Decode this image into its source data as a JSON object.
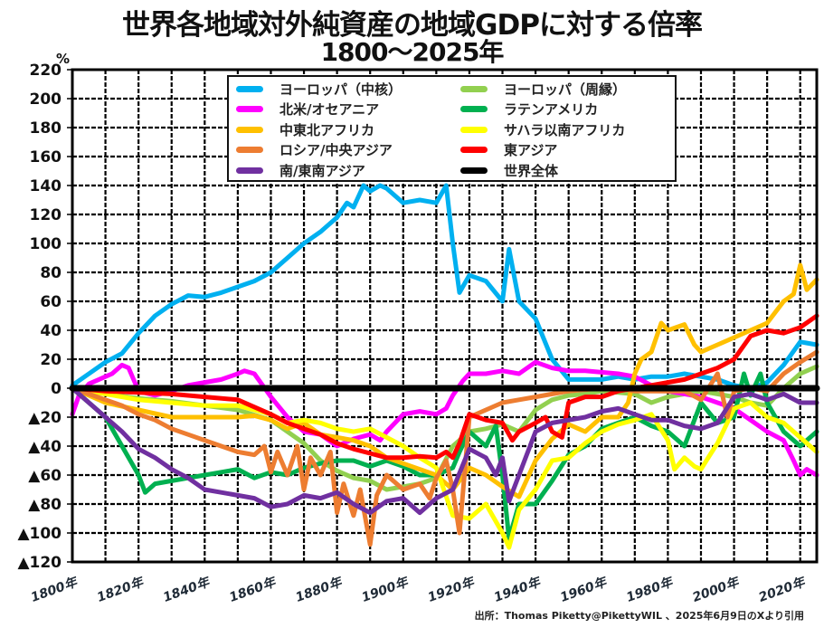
{
  "chart_data": {
    "type": "line",
    "title": "世界各地域対外純資産の地域GDPに対する倍率",
    "subtitle": "1800～2025年",
    "ylabel": "%",
    "xlabel": "",
    "ylim": [
      -120,
      220
    ],
    "xlim": [
      1800,
      2025
    ],
    "grid": true,
    "legend_position": "top-center",
    "y_ticks": [
      220,
      200,
      180,
      160,
      140,
      120,
      100,
      80,
      60,
      40,
      20,
      0,
      -20,
      -40,
      -60,
      -80,
      -100,
      -120
    ],
    "y_tick_labels": [
      "220",
      "200",
      "180",
      "160",
      "140",
      "120",
      "100",
      "80",
      "60",
      "40",
      "20",
      "0",
      "▲20",
      "▲40",
      "▲60",
      "▲80",
      "▲100",
      "▲120"
    ],
    "x_ticks": [
      1800,
      1820,
      1840,
      1860,
      1880,
      1900,
      1920,
      1940,
      1960,
      1980,
      2000,
      2020
    ],
    "x_tick_labels": [
      "1800年",
      "1820年",
      "1840年",
      "1860年",
      "1880年",
      "1900年",
      "1920年",
      "1940年",
      "1960年",
      "1980年",
      "2000年",
      "2020年"
    ],
    "source": "出所：Thomas Piketty@PikettyWIL 、2025年6月9日のXより引用",
    "series": [
      {
        "name": "ヨーロッパ（中核）",
        "color": "#00B0F0",
        "x": [
          1800,
          1805,
          1810,
          1815,
          1820,
          1825,
          1830,
          1835,
          1840,
          1845,
          1850,
          1855,
          1860,
          1865,
          1870,
          1875,
          1880,
          1883,
          1885,
          1888,
          1890,
          1893,
          1895,
          1900,
          1905,
          1910,
          1913,
          1915,
          1917,
          1920,
          1925,
          1930,
          1932,
          1935,
          1940,
          1945,
          1950,
          1955,
          1960,
          1965,
          1970,
          1975,
          1980,
          1985,
          1990,
          1995,
          2000,
          2005,
          2010,
          2015,
          2020,
          2025
        ],
        "y": [
          2,
          10,
          18,
          24,
          38,
          50,
          58,
          64,
          63,
          66,
          70,
          74,
          80,
          90,
          100,
          108,
          118,
          128,
          125,
          140,
          136,
          140,
          138,
          128,
          130,
          128,
          140,
          100,
          66,
          78,
          74,
          60,
          96,
          60,
          48,
          20,
          6,
          6,
          6,
          8,
          6,
          8,
          8,
          10,
          8,
          6,
          2,
          0,
          4,
          16,
          32,
          30
        ]
      },
      {
        "name": "ヨーロッパ（周縁）",
        "color": "#92D050",
        "x": [
          1800,
          1810,
          1820,
          1830,
          1840,
          1850,
          1860,
          1870,
          1875,
          1880,
          1885,
          1890,
          1895,
          1900,
          1905,
          1910,
          1915,
          1920,
          1925,
          1930,
          1935,
          1940,
          1945,
          1950,
          1955,
          1960,
          1965,
          1970,
          1975,
          1980,
          1985,
          1990,
          1995,
          2000,
          2005,
          2010,
          2015,
          2020,
          2025
        ],
        "y": [
          0,
          -4,
          -7,
          -9,
          -12,
          -15,
          -22,
          -38,
          -50,
          -57,
          -62,
          -64,
          -70,
          -68,
          -66,
          -62,
          -40,
          -30,
          -28,
          -25,
          -30,
          -15,
          -8,
          -5,
          -4,
          -2,
          -3,
          -4,
          -10,
          -6,
          -4,
          -2,
          -4,
          -6,
          -10,
          -12,
          0,
          10,
          15
        ]
      },
      {
        "name": "北米/オセアニア",
        "color": "#FF00FF",
        "x": [
          1800,
          1802,
          1805,
          1808,
          1810,
          1812,
          1815,
          1817,
          1820,
          1825,
          1830,
          1835,
          1840,
          1845,
          1850,
          1852,
          1855,
          1860,
          1865,
          1870,
          1875,
          1880,
          1885,
          1890,
          1893,
          1895,
          1900,
          1905,
          1910,
          1913,
          1915,
          1918,
          1920,
          1925,
          1930,
          1935,
          1940,
          1945,
          1950,
          1955,
          1960,
          1965,
          1970,
          1975,
          1980,
          1985,
          1990,
          1995,
          2000,
          2005,
          2010,
          2015,
          2018,
          2020,
          2022,
          2025
        ],
        "y": [
          -18,
          -5,
          3,
          6,
          8,
          10,
          16,
          14,
          -2,
          -5,
          -2,
          2,
          4,
          6,
          10,
          12,
          10,
          -6,
          -20,
          -30,
          -32,
          -40,
          -35,
          -32,
          -36,
          -30,
          -18,
          -16,
          -18,
          -14,
          -5,
          5,
          10,
          10,
          12,
          10,
          18,
          14,
          12,
          12,
          11,
          10,
          8,
          2,
          -2,
          -4,
          -6,
          -10,
          -14,
          -22,
          -30,
          -36,
          -50,
          -60,
          -56,
          -60
        ]
      },
      {
        "name": "ラテンアメリカ",
        "color": "#00B050",
        "x": [
          1800,
          1805,
          1810,
          1815,
          1820,
          1822,
          1825,
          1830,
          1835,
          1840,
          1845,
          1850,
          1855,
          1860,
          1865,
          1870,
          1875,
          1880,
          1885,
          1890,
          1895,
          1900,
          1905,
          1910,
          1915,
          1917,
          1920,
          1925,
          1928,
          1930,
          1932,
          1935,
          1940,
          1945,
          1950,
          1955,
          1960,
          1965,
          1970,
          1975,
          1980,
          1985,
          1990,
          1995,
          2000,
          2003,
          2005,
          2008,
          2010,
          2015,
          2020,
          2025
        ],
        "y": [
          0,
          -10,
          -20,
          -40,
          -60,
          -72,
          -66,
          -64,
          -62,
          -60,
          -58,
          -56,
          -62,
          -58,
          -60,
          -55,
          -52,
          -50,
          -50,
          -54,
          -50,
          -54,
          -60,
          -60,
          -55,
          -44,
          -30,
          -40,
          -26,
          -60,
          -104,
          -80,
          -80,
          -64,
          -46,
          -40,
          -28,
          -24,
          -20,
          -26,
          -30,
          -40,
          -10,
          -24,
          -20,
          10,
          -5,
          10,
          -10,
          -30,
          -40,
          -30
        ]
      },
      {
        "name": "中東北アフリカ",
        "color": "#FFC000",
        "x": [
          1800,
          1810,
          1820,
          1830,
          1840,
          1850,
          1855,
          1860,
          1865,
          1870,
          1875,
          1880,
          1885,
          1890,
          1895,
          1900,
          1905,
          1910,
          1915,
          1920,
          1925,
          1930,
          1935,
          1940,
          1945,
          1950,
          1955,
          1960,
          1965,
          1968,
          1970,
          1972,
          1975,
          1978,
          1980,
          1985,
          1988,
          1990,
          1995,
          2000,
          2005,
          2010,
          2015,
          2018,
          2020,
          2022,
          2025
        ],
        "y": [
          0,
          -10,
          -15,
          -20,
          -20,
          -20,
          -19,
          -22,
          -28,
          -24,
          -32,
          -34,
          -36,
          -40,
          -48,
          -52,
          -56,
          -60,
          -70,
          -55,
          -60,
          -68,
          -75,
          -50,
          -35,
          -25,
          -30,
          -20,
          -20,
          -10,
          10,
          20,
          25,
          45,
          40,
          44,
          30,
          25,
          30,
          35,
          40,
          45,
          60,
          65,
          85,
          68,
          75
        ]
      },
      {
        "name": "サハラ以南アフリカ",
        "color": "#FFFF00",
        "x": [
          1800,
          1810,
          1820,
          1830,
          1840,
          1850,
          1860,
          1865,
          1870,
          1875,
          1880,
          1885,
          1890,
          1895,
          1900,
          1905,
          1910,
          1915,
          1920,
          1925,
          1930,
          1932,
          1935,
          1940,
          1945,
          1950,
          1955,
          1960,
          1965,
          1970,
          1975,
          1980,
          1982,
          1985,
          1988,
          1990,
          1993,
          1995,
          2000,
          2005,
          2010,
          2015,
          2020,
          2025
        ],
        "y": [
          0,
          -4,
          -8,
          -10,
          -12,
          -12,
          -18,
          -24,
          -22,
          -24,
          -28,
          -30,
          -28,
          -34,
          -40,
          -48,
          -55,
          -88,
          -90,
          -80,
          -100,
          -110,
          -84,
          -70,
          -50,
          -48,
          -38,
          -30,
          -25,
          -22,
          -18,
          -36,
          -56,
          -48,
          -54,
          -56,
          -45,
          -38,
          -14,
          -10,
          -20,
          -24,
          -34,
          -44
        ]
      },
      {
        "name": "ロシア/中央アジア",
        "color": "#ED7D31",
        "x": [
          1800,
          1805,
          1810,
          1815,
          1820,
          1825,
          1830,
          1835,
          1840,
          1845,
          1850,
          1855,
          1858,
          1860,
          1862,
          1865,
          1868,
          1870,
          1872,
          1875,
          1878,
          1880,
          1882,
          1885,
          1887,
          1890,
          1892,
          1895,
          1900,
          1905,
          1908,
          1910,
          1913,
          1915,
          1917,
          1920,
          1925,
          1930,
          1935,
          1940,
          1945,
          1950,
          1955,
          1960,
          1965,
          1970,
          1975,
          1980,
          1985,
          1990,
          1995,
          1998,
          2000,
          2005,
          2010,
          2015,
          2020,
          2025
        ],
        "y": [
          0,
          -4,
          -8,
          -12,
          -18,
          -22,
          -28,
          -32,
          -36,
          -40,
          -44,
          -46,
          -40,
          -58,
          -44,
          -60,
          -40,
          -70,
          -48,
          -60,
          -44,
          -86,
          -66,
          -88,
          -70,
          -108,
          -74,
          -60,
          -70,
          -66,
          -76,
          -62,
          -50,
          -70,
          -100,
          -20,
          -15,
          -10,
          -8,
          -6,
          -4,
          -2,
          -1,
          0,
          0,
          -2,
          -2,
          -2,
          -2,
          -8,
          10,
          -20,
          -2,
          0,
          -2,
          10,
          18,
          25
        ]
      },
      {
        "name": "東アジア",
        "color": "#FF0000",
        "x": [
          1800,
          1810,
          1820,
          1830,
          1840,
          1850,
          1855,
          1860,
          1865,
          1870,
          1875,
          1880,
          1885,
          1890,
          1895,
          1900,
          1905,
          1910,
          1913,
          1915,
          1917,
          1920,
          1925,
          1930,
          1933,
          1935,
          1940,
          1943,
          1945,
          1948,
          1950,
          1955,
          1960,
          1965,
          1970,
          1975,
          1980,
          1985,
          1990,
          1995,
          2000,
          2005,
          2010,
          2015,
          2020,
          2025
        ],
        "y": [
          0,
          -2,
          -3,
          -4,
          -6,
          -8,
          -13,
          -18,
          -24,
          -28,
          -32,
          -38,
          -42,
          -45,
          -48,
          -48,
          -47,
          -48,
          -44,
          -48,
          -38,
          -18,
          -22,
          -24,
          -36,
          -30,
          -24,
          -20,
          -30,
          -34,
          -10,
          -6,
          -6,
          -2,
          0,
          2,
          4,
          6,
          10,
          14,
          20,
          36,
          40,
          38,
          42,
          50
        ]
      },
      {
        "name": "南/東南アジア",
        "color": "#7030A0",
        "x": [
          1800,
          1805,
          1810,
          1815,
          1820,
          1825,
          1830,
          1835,
          1840,
          1845,
          1850,
          1855,
          1860,
          1865,
          1870,
          1875,
          1880,
          1885,
          1890,
          1895,
          1900,
          1905,
          1910,
          1915,
          1920,
          1925,
          1928,
          1930,
          1932,
          1935,
          1940,
          1945,
          1950,
          1955,
          1960,
          1965,
          1970,
          1975,
          1980,
          1985,
          1990,
          1995,
          2000,
          2005,
          2010,
          2015,
          2020,
          2025
        ],
        "y": [
          0,
          -10,
          -20,
          -30,
          -42,
          -48,
          -56,
          -62,
          -70,
          -72,
          -74,
          -76,
          -82,
          -80,
          -74,
          -76,
          -72,
          -80,
          -86,
          -78,
          -76,
          -86,
          -76,
          -70,
          -42,
          -48,
          -60,
          -48,
          -78,
          -60,
          -30,
          -24,
          -22,
          -20,
          -16,
          -14,
          -18,
          -22,
          -22,
          -26,
          -28,
          -24,
          -6,
          -4,
          -8,
          -4,
          -10,
          -10
        ]
      },
      {
        "name": "世界全体",
        "color": "#000000",
        "x": [
          1800,
          2025
        ],
        "y": [
          0,
          0
        ]
      }
    ]
  },
  "legend": {
    "items": [
      {
        "label": "ヨーロッパ（中核）",
        "color": "#00B0F0"
      },
      {
        "label": "ヨーロッパ（周縁）",
        "color": "#92D050"
      },
      {
        "label": "北米/オセアニア",
        "color": "#FF00FF"
      },
      {
        "label": "ラテンアメリカ",
        "color": "#00B050"
      },
      {
        "label": "中東北アフリカ",
        "color": "#FFC000"
      },
      {
        "label": "サハラ以南アフリカ",
        "color": "#FFFF00"
      },
      {
        "label": "ロシア/中央アジア",
        "color": "#ED7D31"
      },
      {
        "label": "東アジア",
        "color": "#FF0000"
      },
      {
        "label": "南/東南アジア",
        "color": "#7030A0"
      },
      {
        "label": "世界全体",
        "color": "#000000"
      }
    ]
  }
}
